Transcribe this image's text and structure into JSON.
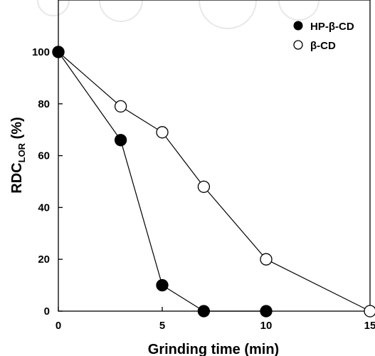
{
  "chart_data": {
    "type": "scatter",
    "xlabel": "Grinding time (min)",
    "ylabel": {
      "main": "RDC",
      "sub": "LOR",
      "suffix": " (%)"
    },
    "xlim": [
      0,
      15
    ],
    "ylim": [
      0,
      100
    ],
    "x_ticks": [
      "0",
      "5",
      "10",
      "15"
    ],
    "y_ticks": [
      "0",
      "20",
      "40",
      "60",
      "80",
      "100"
    ],
    "grid": false,
    "legend_position": "top-right",
    "series": [
      {
        "name": "HP-β-CD",
        "marker": "filled-circle",
        "color": "#000000",
        "x": [
          0,
          3,
          5,
          7,
          10
        ],
        "y": [
          100,
          66,
          10,
          0,
          0
        ]
      },
      {
        "name": "β-CD",
        "marker": "open-circle",
        "color": "#000000",
        "x": [
          0,
          3,
          5,
          7,
          10,
          15
        ],
        "y": [
          100,
          79,
          69,
          48,
          20,
          0
        ]
      }
    ]
  }
}
